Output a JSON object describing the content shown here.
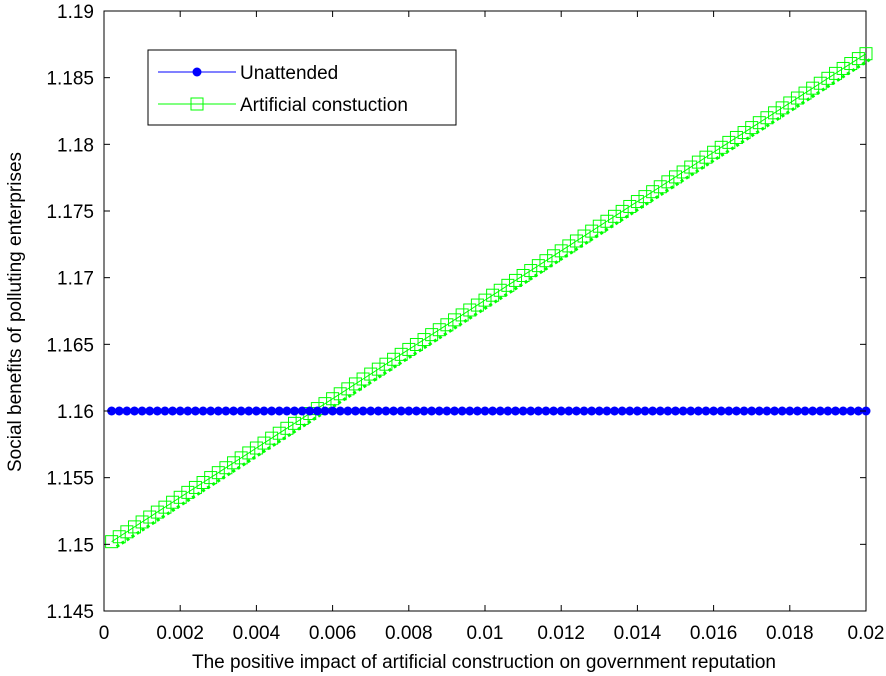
{
  "chart_data": {
    "type": "line",
    "title": "",
    "xlabel": "The positive impact of artificial construction on government reputation",
    "ylabel": "Social benefits of polluting enterprises",
    "xlim": [
      0,
      0.02
    ],
    "ylim": [
      1.145,
      1.19
    ],
    "x_ticks": [
      0,
      0.002,
      0.004,
      0.006,
      0.008,
      0.01,
      0.012,
      0.014,
      0.016,
      0.018,
      0.02
    ],
    "x_tick_labels": [
      "0",
      "0.002",
      "0.004",
      "0.006",
      "0.008",
      "0.01",
      "0.012",
      "0.014",
      "0.016",
      "0.018",
      "0.02"
    ],
    "y_ticks": [
      1.145,
      1.15,
      1.155,
      1.16,
      1.165,
      1.17,
      1.175,
      1.18,
      1.185,
      1.19
    ],
    "y_tick_labels": [
      "1.145",
      "1.15",
      "1.155",
      "1.16",
      "1.165",
      "1.17",
      "1.175",
      "1.18",
      "1.185",
      "1.19"
    ],
    "grid": false,
    "legend_position": "top-left",
    "x_start": 0.0002,
    "x_end": 0.02,
    "n_points": 100,
    "series": [
      {
        "name": "Unattended",
        "color": "#0000ff",
        "marker": "filled-circle",
        "y_start": 1.16,
        "y_end": 1.16
      },
      {
        "name": "Artificial constuction",
        "color": "#00ff00",
        "marker": "open-square-dotted",
        "y_start": 1.1502,
        "y_end": 1.1868
      }
    ]
  }
}
